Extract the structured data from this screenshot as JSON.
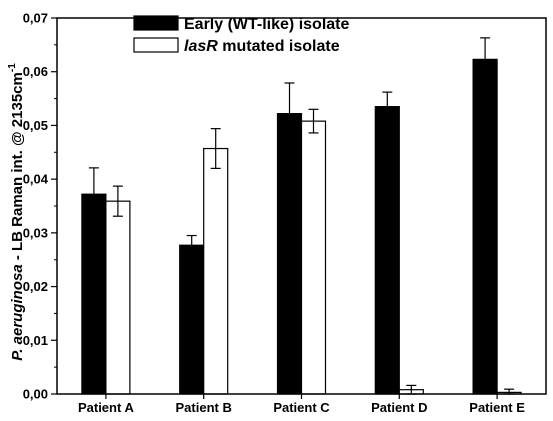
{
  "chart_data": {
    "type": "bar",
    "categories": [
      "Patient A",
      "Patient B",
      "Patient C",
      "Patient D",
      "Patient E"
    ],
    "series": [
      {
        "name": "Early (WT-like) isolate",
        "fill": "#000000",
        "values": [
          0.0372,
          0.0277,
          0.0522,
          0.0535,
          0.0623
        ],
        "errors": [
          0.0049,
          0.0018,
          0.0057,
          0.0027,
          0.004
        ]
      },
      {
        "name": "lasR mutated isolate",
        "name_parts": {
          "italic": "lasR",
          "rest": " mutated isolate"
        },
        "fill": "#ffffff",
        "values": [
          0.0359,
          0.0457,
          0.0508,
          0.0008,
          0.0003
        ],
        "errors": [
          0.0028,
          0.0037,
          0.0022,
          0.0008,
          0.0006
        ]
      }
    ],
    "ylim": [
      0,
      0.07
    ],
    "ytick_values": [
      0,
      0.01,
      0.02,
      0.03,
      0.04,
      0.05,
      0.06,
      0.07
    ],
    "ytick_labels": [
      "0,00",
      "0,01",
      "0,02",
      "0,03",
      "0,04",
      "0,05",
      "0,06",
      "0,07"
    ],
    "ylabel": {
      "italic": "P. aeruginosa",
      "main": " - LB Raman int. @ 2135cm",
      "superscript": "-1"
    },
    "xlabel": "",
    "legend_position": "top-left",
    "grid": false
  }
}
